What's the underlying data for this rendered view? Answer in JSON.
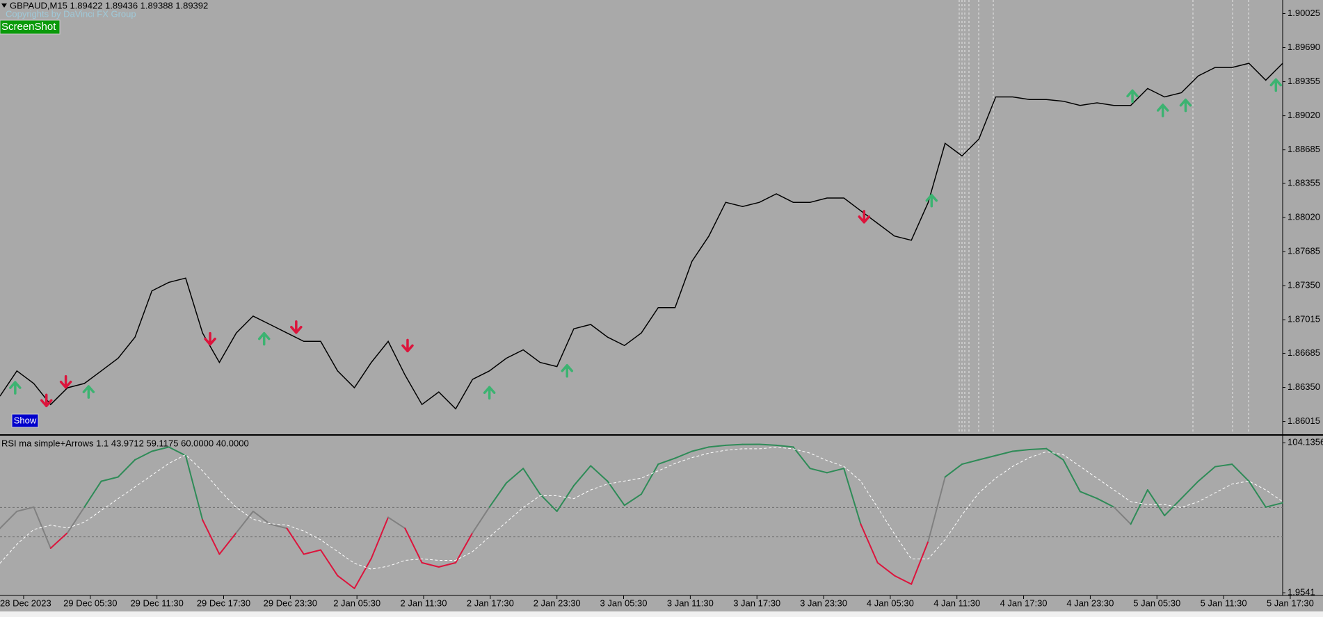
{
  "chart_data": [
    {
      "type": "line",
      "title": "GBPAUD,M15  1.89422 1.89436 1.89388 1.89392",
      "subtitle": "Copyrights by DaVinci FX Group",
      "xlim": [
        0,
        76
      ],
      "ylim": [
        1.85889,
        1.90158
      ],
      "yticks": [
        1.90025,
        {
          "value": 1.8969,
          "label": "1.89690"
        },
        1.89355,
        {
          "value": 1.8902,
          "label": "1.89020"
        },
        1.88685,
        1.88355,
        {
          "value": 1.8802,
          "label": "1.88020"
        },
        1.87685,
        {
          "value": 1.8735,
          "label": "1.87350"
        },
        1.87015,
        1.86685,
        {
          "value": 1.8635,
          "label": "1.86350"
        },
        1.86015
      ],
      "series": [
        {
          "color": "#000000",
          "values": [
            1.86264,
            1.86512,
            1.86388,
            1.86181,
            1.86346,
            1.86388,
            1.86512,
            1.86636,
            1.86844,
            1.87299,
            1.87382,
            1.87424,
            1.86885,
            1.86595,
            1.86885,
            1.87051,
            1.86968,
            1.86885,
            1.86802,
            1.86802,
            1.86512,
            1.86346,
            1.86595,
            1.86802,
            1.86471,
            1.86181,
            1.86305,
            1.86139,
            1.86429,
            1.86512,
            1.86636,
            1.86719,
            1.86595,
            1.86554,
            1.86926,
            1.86968,
            1.86844,
            1.86761,
            1.86885,
            1.87134,
            1.87134,
            1.87589,
            1.87838,
            1.88169,
            1.88128,
            1.88169,
            1.88252,
            1.88169,
            1.88169,
            1.88211,
            1.88211,
            1.88086,
            1.87962,
            1.87838,
            1.87796,
            1.88169,
            1.88749,
            1.88625,
            1.88791,
            1.89205,
            1.89205,
            1.8918,
            1.8918,
            1.89163,
            1.89122,
            1.89147,
            1.89122,
            1.89122,
            1.89288,
            1.89205,
            1.89246,
            1.89412,
            1.89495,
            1.89495,
            1.89536,
            1.8937,
            1.89536
          ]
        }
      ],
      "up_arrows": {
        "color": "#3cb371",
        "x": [
          0.9,
          5.25,
          15.65,
          29,
          33.6,
          55.2,
          67.1,
          68.9,
          70.25,
          75.6
        ],
        "values": [
          1.86346,
          1.86305,
          1.86827,
          1.86297,
          1.86512,
          1.88186,
          1.89213,
          1.89072,
          1.89122,
          1.89321
        ]
      },
      "down_arrows": {
        "color": "#dc143c",
        "x": [
          2.75,
          3.9,
          12.45,
          17.55,
          24.15,
          51.2
        ],
        "values": [
          1.86222,
          1.86404,
          1.86827,
          1.86943,
          1.86761,
          1.88028
        ]
      },
      "buttons": [
        "ScreenShot",
        "Show"
      ]
    },
    {
      "type": "rsi",
      "title": "RSI ma simple+Arrows 1.1 43.9712 59.1175 60.0000 40.0000",
      "xlim": [
        0,
        76
      ],
      "ylim": [
        0.1,
        108.47
      ],
      "yticks": [
        104.1356,
        1.9541
      ],
      "levels": [
        60,
        40
      ],
      "up_color": "#2e8b57",
      "down_color": "#dc143c",
      "neutral_color": "#808080",
      "xticks": [
        {
          "value": 1.4,
          "label": "28 Dec 2023"
        },
        {
          "value": 5.35,
          "label": "29 Dec 05:30"
        },
        {
          "value": 9.3,
          "label": "29 Dec 11:30"
        },
        {
          "value": 13.25,
          "label": "29 Dec 17:30"
        },
        {
          "value": 17.2,
          "label": "29 Dec 23:30"
        },
        {
          "value": 21.15,
          "label": "2 Jan 05:30"
        },
        {
          "value": 25.1,
          "label": "2 Jan 11:30"
        },
        {
          "value": 29.05,
          "label": "2 Jan 17:30"
        },
        {
          "value": 33,
          "label": "2 Jan 23:30"
        },
        {
          "value": 36.95,
          "label": "3 Jan 05:30"
        },
        {
          "value": 40.9,
          "label": "3 Jan 11:30"
        },
        {
          "value": 44.85,
          "label": "3 Jan 17:30"
        },
        {
          "value": 48.8,
          "label": "3 Jan 23:30"
        },
        {
          "value": 52.75,
          "label": "4 Jan 05:30"
        },
        {
          "value": 56.7,
          "label": "4 Jan 11:30"
        },
        {
          "value": 60.65,
          "label": "4 Jan 17:30"
        },
        {
          "value": 64.6,
          "label": "4 Jan 23:30"
        },
        {
          "value": 68.55,
          "label": "5 Jan 05:30"
        },
        {
          "value": 72.5,
          "label": "5 Jan 11:30"
        },
        {
          "value": 76.45,
          "label": "5 Jan 17:30"
        }
      ],
      "series": [
        {
          "values": [
            45.8,
            57.4,
            60.3,
            32.3,
            42.8,
            60.3,
            77.9,
            80.8,
            92.5,
            98.3,
            101.2,
            95.4,
            51.6,
            28.2,
            42.8,
            57.4,
            48.7,
            45.8,
            28.2,
            31.1,
            13.6,
            4.9,
            25.3,
            53.3,
            45.8,
            22.4,
            19.5,
            22.4,
            42.8,
            60.3,
            76.7,
            86.6,
            69.1,
            57.4,
            74.9,
            88.4,
            77.9,
            61.5,
            69.1,
            89.5,
            93.6,
            98.3,
            101.2,
            102.4,
            102.97,
            103,
            102.4,
            101.2,
            86.6,
            83.7,
            86.6,
            48.7,
            22.4,
            13.6,
            7.8,
            37,
            80.8,
            89.5,
            92.5,
            95.4,
            98.3,
            99.5,
            100.1,
            92.5,
            70.9,
            66.2,
            60.3,
            48.7,
            72,
            54.5,
            66.2,
            77.9,
            87.8,
            89.5,
            77.9,
            60.3,
            63.2
          ]
        },
        {
          "color": "#ffffff",
          "values": [
            22,
            35,
            45,
            48,
            46,
            50,
            58,
            66,
            74,
            82,
            90,
            96,
            85,
            72,
            60,
            52,
            49,
            48,
            44,
            38,
            30,
            22,
            18,
            20,
            24,
            25,
            24,
            24,
            30,
            40,
            50,
            60,
            68,
            68,
            66,
            72,
            76,
            78,
            80,
            85,
            90,
            94,
            97,
            99,
            100,
            100,
            101,
            100,
            97,
            92,
            88,
            78,
            60,
            42,
            25,
            25,
            38,
            55,
            70,
            80,
            88,
            94,
            98,
            96,
            88,
            80,
            72,
            64,
            62,
            62,
            60,
            64,
            70,
            76,
            78,
            72,
            64
          ]
        }
      ]
    }
  ]
}
